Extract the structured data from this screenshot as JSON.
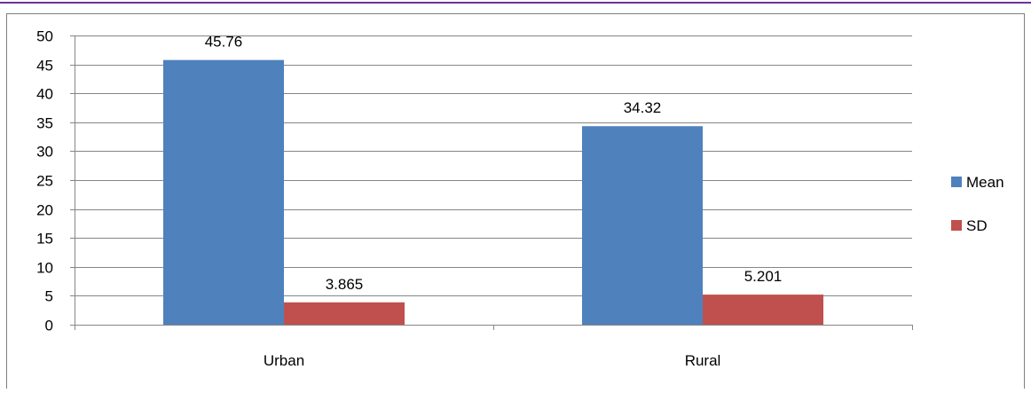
{
  "colors": {
    "top_rule": "#7030A0",
    "frame": "#7F7F7F",
    "gridline": "#868686",
    "axis": "#868686",
    "text": "#000000"
  },
  "chart_data": {
    "type": "bar",
    "title": "",
    "xlabel": "",
    "ylabel": "",
    "categories": [
      "Urban",
      "Rural"
    ],
    "series": [
      {
        "name": "Mean",
        "color": "#4F81BD",
        "values": [
          45.76,
          34.32
        ],
        "labels": [
          "45.76",
          "34.32"
        ]
      },
      {
        "name": "SD",
        "color": "#C0504D",
        "values": [
          3.865,
          5.201
        ],
        "labels": [
          "3.865",
          "5.201"
        ]
      }
    ],
    "ylim": [
      0,
      50
    ],
    "yticks": [
      "0",
      "5",
      "10",
      "15",
      "20",
      "25",
      "30",
      "35",
      "40",
      "45",
      "50"
    ],
    "grid": true,
    "legend_position": "right"
  }
}
